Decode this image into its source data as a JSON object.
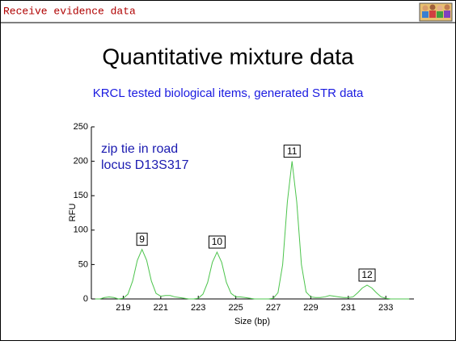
{
  "header": "Receive evidence data",
  "title": "Quantitative mixture data",
  "subtitle": "KRCL tested biological items, generated STR data",
  "chart_data": {
    "type": "line",
    "xlabel": "Size (bp)",
    "ylabel": "RFU",
    "annotations": [
      "zip tie in road",
      "locus D13S317"
    ],
    "peak_labels": [
      {
        "text": "9",
        "x": 220
      },
      {
        "text": "10",
        "x": 224
      },
      {
        "text": "11",
        "x": 228
      },
      {
        "text": "12",
        "x": 232
      }
    ],
    "xlim": [
      217.3,
      234.5
    ],
    "ylim": [
      0,
      250
    ],
    "xticks": [
      219,
      221,
      223,
      225,
      227,
      229,
      231,
      233
    ],
    "yticks": [
      0,
      50,
      100,
      150,
      200,
      250
    ],
    "series": [
      {
        "color": "#4cc44c",
        "x": [
          217.5,
          217.75,
          218,
          218.25,
          218.5,
          218.75,
          219,
          219.25,
          219.5,
          219.75,
          220,
          220.25,
          220.5,
          220.75,
          221,
          221.25,
          221.5,
          221.75,
          222,
          222.25,
          222.5,
          222.75,
          223,
          223.25,
          223.5,
          223.75,
          224,
          224.25,
          224.5,
          224.75,
          225,
          225.25,
          225.5,
          225.75,
          226,
          226.25,
          226.5,
          226.75,
          227,
          227.25,
          227.5,
          227.75,
          228,
          228.25,
          228.5,
          228.75,
          229,
          229.25,
          229.5,
          229.75,
          230,
          230.25,
          230.5,
          230.75,
          231,
          231.25,
          231.5,
          231.75,
          232,
          232.25,
          232.5,
          232.75,
          233,
          233.25,
          233.5,
          233.75,
          234,
          234.25
        ],
        "values": [
          0,
          0,
          2,
          3,
          2,
          0,
          1,
          7,
          26,
          56,
          72,
          56,
          26,
          8,
          4,
          5,
          5,
          3,
          2,
          1,
          0,
          0,
          1,
          7,
          24,
          53,
          68,
          53,
          24,
          8,
          3,
          3,
          2,
          1,
          0,
          0,
          0,
          0,
          1,
          9,
          50,
          141,
          200,
          141,
          50,
          10,
          3,
          2,
          2,
          3,
          5,
          4,
          3,
          2,
          2,
          3,
          9,
          16,
          20,
          16,
          9,
          3,
          1,
          0,
          0,
          0,
          0,
          0
        ]
      }
    ]
  }
}
